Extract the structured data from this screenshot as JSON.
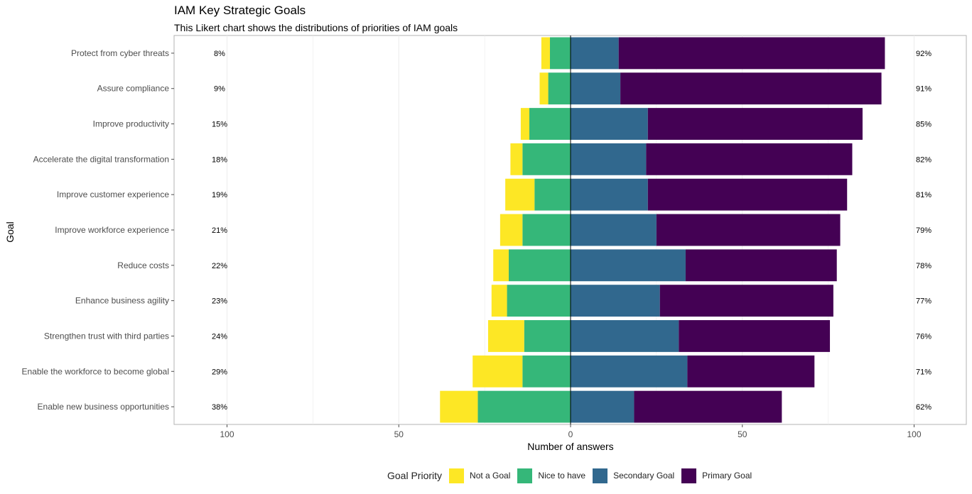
{
  "chart_data": {
    "type": "bar",
    "orientation": "horizontal",
    "stacking": "diverging",
    "title": "IAM Key Strategic Goals",
    "subtitle": "This Likert chart shows the distributions of priorities of IAM goals",
    "xlabel": "Number of answers",
    "ylabel": "Goal",
    "xlim": [
      -100,
      100
    ],
    "x_ticks": [
      -100,
      -50,
      0,
      50,
      100
    ],
    "x_tick_labels": [
      "100",
      "50",
      "0",
      "50",
      "100"
    ],
    "grid": true,
    "legend": {
      "title": "Goal Priority",
      "position": "bottom"
    },
    "categories": [
      "Protect from cyber threats",
      "Assure compliance",
      "Improve productivity",
      "Accelerate the digital transformation",
      "Improve customer experience",
      "Improve workforce experience",
      "Reduce costs",
      "Enhance business agility",
      "Strengthen trust with third parties",
      "Enable the workforce to become global",
      "Enable new business opportunities"
    ],
    "series": [
      {
        "name": "Not a Goal",
        "color": "#fde725",
        "side": "negative",
        "values": [
          2.5,
          2.5,
          2.5,
          3.5,
          8.5,
          6.5,
          4.5,
          4.5,
          10.5,
          14.5,
          11
        ]
      },
      {
        "name": "Nice to have",
        "color": "#35b779",
        "side": "negative",
        "values": [
          6,
          6.5,
          12,
          14,
          10.5,
          14,
          18,
          18.5,
          13.5,
          14,
          27
        ]
      },
      {
        "name": "Secondary Goal",
        "color": "#31688e",
        "side": "positive",
        "values": [
          14,
          14.5,
          22.5,
          22,
          22.5,
          25,
          33.5,
          26,
          31.5,
          34,
          18.5
        ]
      },
      {
        "name": "Primary Goal",
        "color": "#440154",
        "side": "positive",
        "values": [
          77.5,
          76,
          62.5,
          60,
          58,
          53.5,
          44,
          50.5,
          44,
          37,
          43
        ]
      }
    ],
    "left_percent_labels": [
      "8%",
      "9%",
      "15%",
      "18%",
      "19%",
      "21%",
      "22%",
      "23%",
      "24%",
      "29%",
      "38%"
    ],
    "right_percent_labels": [
      "92%",
      "91%",
      "85%",
      "82%",
      "81%",
      "79%",
      "78%",
      "77%",
      "76%",
      "71%",
      "62%"
    ]
  }
}
